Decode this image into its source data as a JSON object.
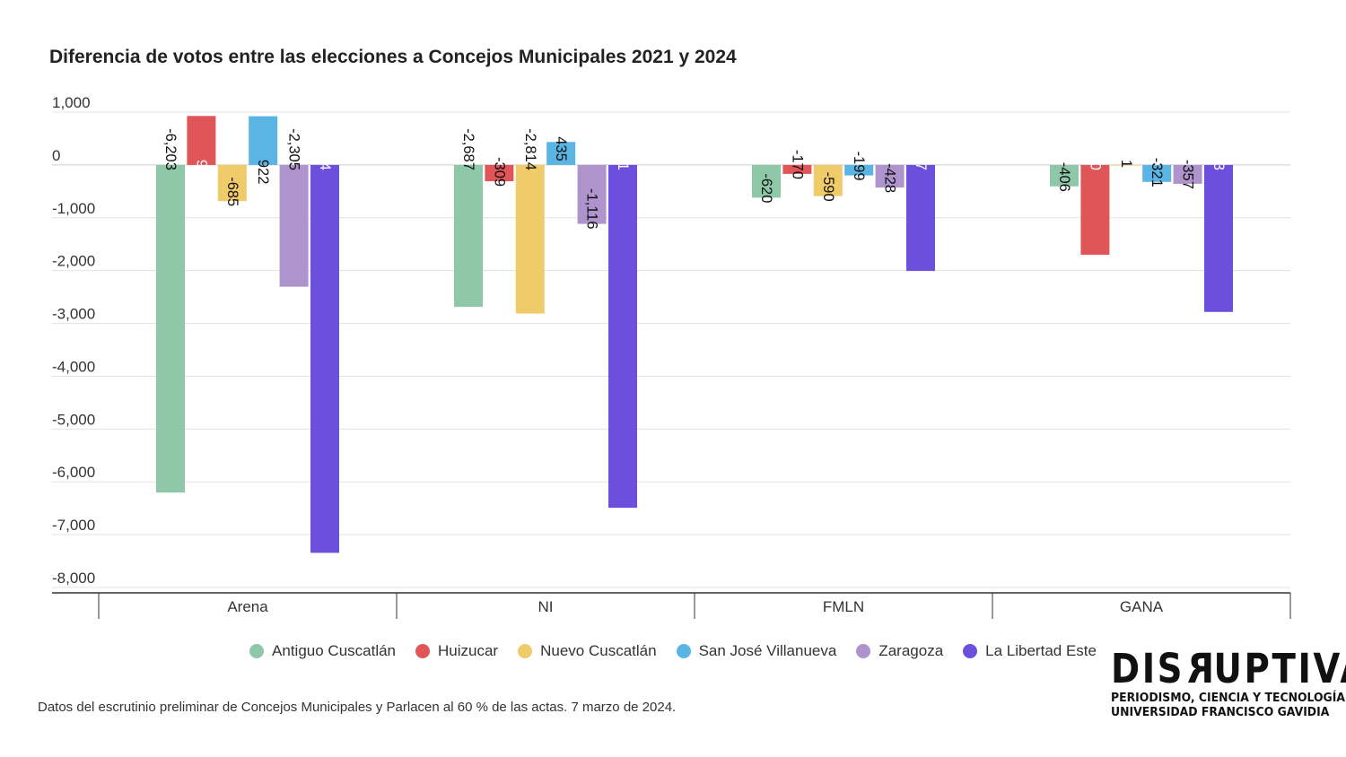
{
  "chart_data": {
    "type": "bar",
    "title": "Diferencia de votos entre las elecciones a Concejos Municipales 2021 y 2024",
    "categories": [
      "Arena",
      "NI",
      "FMLN",
      "GANA"
    ],
    "series": [
      {
        "name": "Antiguo Cuscatlán",
        "color": "#8fc8a8",
        "values": [
          -6203,
          -2687,
          -620,
          -406
        ],
        "labels": [
          "-6,203",
          "-2,687",
          "-620",
          "-406"
        ]
      },
      {
        "name": "Huizucar",
        "color": "#e05558",
        "values": [
          927,
          -309,
          -170,
          -1700
        ],
        "labels": [
          "927",
          "-309",
          "-170",
          "-1,700"
        ]
      },
      {
        "name": "Nuevo Cuscatlán",
        "color": "#f0cb6a",
        "values": [
          -685,
          -2814,
          -590,
          1
        ],
        "labels": [
          "-685",
          "-2,814",
          "-590",
          "1"
        ]
      },
      {
        "name": "San José Villanueva",
        "color": "#5ab5e4",
        "values": [
          922,
          435,
          -199,
          -321
        ],
        "labels": [
          "922",
          "435",
          "-199",
          "-321"
        ]
      },
      {
        "name": "Zaragoza",
        "color": "#ae93cc",
        "values": [
          -2305,
          -1116,
          -428,
          -357
        ],
        "labels": [
          "-2,305",
          "-1,116",
          "-428",
          "-357"
        ]
      },
      {
        "name": "La Libertad Este",
        "color": "#6c50dd",
        "values": [
          -7344,
          -6491,
          -2007,
          -2783
        ],
        "labels": [
          "-7,344",
          "-6,491",
          "-2,007",
          "-2,783"
        ]
      }
    ],
    "ylim": [
      -8000,
      1000
    ],
    "yticks": [
      1000,
      0,
      -1000,
      -2000,
      -3000,
      -4000,
      -5000,
      -6000,
      -7000,
      -8000
    ],
    "ytick_labels": [
      "1,000",
      "0",
      "-1,000",
      "-2,000",
      "-3,000",
      "-4,000",
      "-5,000",
      "-6,000",
      "-7,000",
      "-8,000"
    ],
    "grid": true,
    "legend": "bottom"
  },
  "footnote": "Datos del escrutinio preliminar de Concejos Municipales y Parlacen al 60 % de las actas. 7 marzo de 2024.",
  "logo": {
    "word_start": "DIS",
    "word_rev": "R",
    "word_end": "UPTIVA",
    "line1": "PERIODISMO, CIENCIA Y TECNOLOGÍA",
    "line2": "UNIVERSIDAD FRANCISCO GAVIDIA"
  }
}
